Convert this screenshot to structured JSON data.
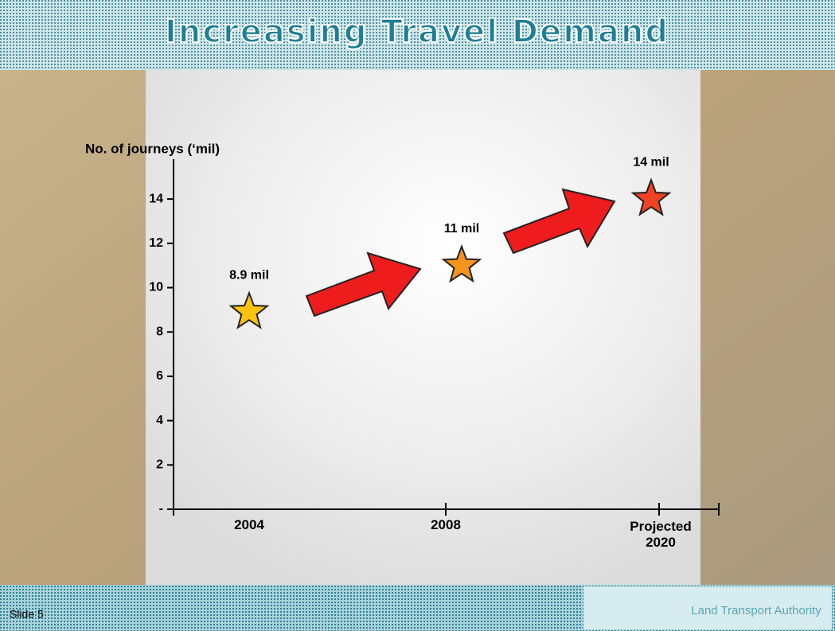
{
  "title": "Increasing Travel Demand",
  "footer": {
    "slide": "Slide 5",
    "logo": "Land Transport Authority"
  },
  "chart_data": {
    "type": "star",
    "y_label": "No. of journeys (‘mil)",
    "categories": [
      "2004",
      "2008",
      "Projected 2020"
    ],
    "values": [
      8.9,
      11,
      14
    ],
    "value_labels": [
      "8.9 mil",
      "11 mil",
      "14 mil"
    ],
    "colors": [
      "#ffc20e",
      "#f7941d",
      "#ef4123"
    ],
    "ylim": [
      0,
      15.8
    ],
    "yticks": [
      {
        "value": 0,
        "label": "-"
      },
      2,
      4,
      6,
      8,
      10,
      12,
      14
    ]
  }
}
